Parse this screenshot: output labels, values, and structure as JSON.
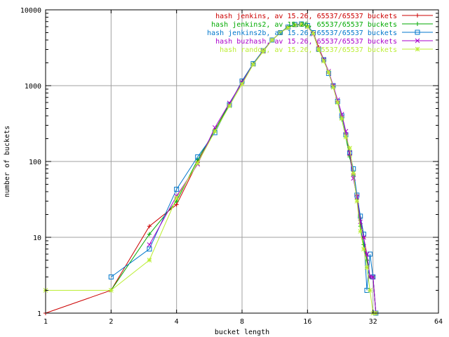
{
  "chart_data": {
    "type": "line",
    "title": "",
    "xlabel": "bucket length",
    "ylabel": "number of buckets",
    "xscale": "log2",
    "yscale": "log10",
    "xlim": [
      1,
      64
    ],
    "ylim": [
      1,
      10000
    ],
    "grid": true,
    "legend_position": "top-right",
    "xticks": [
      {
        "value": 1,
        "label": "1"
      },
      {
        "value": 2,
        "label": "2"
      },
      {
        "value": 4,
        "label": "4"
      },
      {
        "value": 8,
        "label": "8"
      },
      {
        "value": 16,
        "label": "16"
      },
      {
        "value": 32,
        "label": "32"
      },
      {
        "value": 64,
        "label": "64"
      }
    ],
    "yticks": [
      {
        "value": 1,
        "label": "1"
      },
      {
        "value": 10,
        "label": "10"
      },
      {
        "value": 100,
        "label": "100"
      },
      {
        "value": 1000,
        "label": "1000"
      },
      {
        "value": 10000,
        "label": "10000"
      }
    ],
    "series": [
      {
        "name": "hash jenkins, av 15.26, 65537/65537 buckets",
        "color": "#cc0000",
        "marker": "plus",
        "points": [
          [
            1,
            1
          ],
          [
            2,
            2
          ],
          [
            3,
            14
          ],
          [
            4,
            27
          ],
          [
            5,
            98
          ],
          [
            6,
            256
          ],
          [
            7,
            560
          ],
          [
            8,
            1150
          ],
          [
            9,
            1950
          ],
          [
            10,
            2900
          ],
          [
            11,
            4000
          ],
          [
            12,
            5000
          ],
          [
            13,
            5900
          ],
          [
            14,
            6300
          ],
          [
            15,
            6400
          ],
          [
            16,
            6200
          ],
          [
            17,
            5000
          ],
          [
            18,
            3200
          ],
          [
            19,
            2200
          ],
          [
            20,
            1500
          ],
          [
            21,
            1000
          ],
          [
            22,
            610
          ],
          [
            23,
            390
          ],
          [
            24,
            230
          ],
          [
            25,
            120
          ],
          [
            26,
            68
          ],
          [
            27,
            36
          ],
          [
            28,
            18
          ],
          [
            29,
            10
          ],
          [
            30,
            5
          ],
          [
            31,
            3
          ],
          [
            32,
            3
          ],
          [
            33,
            1
          ]
        ]
      },
      {
        "name": "hash jenkins2, av 15.26, 65537/65537 buckets",
        "color": "#00aa00",
        "marker": "plus",
        "points": [
          [
            2,
            2
          ],
          [
            3,
            11
          ],
          [
            4,
            30
          ],
          [
            5,
            105
          ],
          [
            6,
            260
          ],
          [
            7,
            575
          ],
          [
            8,
            1100
          ],
          [
            9,
            1950
          ],
          [
            10,
            2900
          ],
          [
            11,
            4000
          ],
          [
            12,
            5000
          ],
          [
            13,
            6000
          ],
          [
            14,
            6400
          ],
          [
            15,
            6500
          ],
          [
            16,
            6100
          ],
          [
            17,
            4900
          ],
          [
            18,
            3000
          ],
          [
            19,
            2200
          ],
          [
            20,
            1500
          ],
          [
            21,
            980
          ],
          [
            22,
            600
          ],
          [
            23,
            360
          ],
          [
            24,
            210
          ],
          [
            25,
            115
          ],
          [
            26,
            65
          ],
          [
            27,
            32
          ],
          [
            28,
            14
          ],
          [
            29,
            8
          ],
          [
            30,
            5
          ],
          [
            31,
            3
          ],
          [
            32,
            3
          ],
          [
            33,
            1
          ]
        ]
      },
      {
        "name": "hash jenkins2b, av 15.26, 65537/65537 buckets",
        "color": "#0077cc",
        "marker": "square",
        "points": [
          [
            2,
            3
          ],
          [
            3,
            7
          ],
          [
            4,
            43
          ],
          [
            5,
            115
          ],
          [
            6,
            240
          ],
          [
            7,
            560
          ],
          [
            8,
            1150
          ],
          [
            9,
            1950
          ],
          [
            10,
            2900
          ],
          [
            11,
            4000
          ],
          [
            12,
            5000
          ],
          [
            13,
            5900
          ],
          [
            14,
            6400
          ],
          [
            15,
            6500
          ],
          [
            16,
            6200
          ],
          [
            17,
            5000
          ],
          [
            18,
            3000
          ],
          [
            19,
            2200
          ],
          [
            20,
            1450
          ],
          [
            21,
            1000
          ],
          [
            22,
            620
          ],
          [
            23,
            400
          ],
          [
            24,
            225
          ],
          [
            25,
            130
          ],
          [
            26,
            80
          ],
          [
            27,
            36
          ],
          [
            28,
            19
          ],
          [
            29,
            11
          ],
          [
            30,
            2
          ],
          [
            31,
            6
          ],
          [
            32,
            3
          ],
          [
            33,
            1
          ]
        ]
      },
      {
        "name": "hash buzhash, av 15.26, 65537/65537 buckets",
        "color": "#aa00cc",
        "marker": "cross",
        "points": [
          [
            3,
            8
          ],
          [
            4,
            35
          ],
          [
            5,
            92
          ],
          [
            6,
            280
          ],
          [
            7,
            590
          ],
          [
            8,
            1100
          ],
          [
            9,
            1900
          ],
          [
            10,
            2850
          ],
          [
            11,
            4000
          ],
          [
            12,
            5000
          ],
          [
            13,
            5800
          ],
          [
            14,
            6300
          ],
          [
            15,
            6400
          ],
          [
            16,
            6000
          ],
          [
            17,
            4800
          ],
          [
            18,
            3100
          ],
          [
            19,
            2200
          ],
          [
            20,
            1550
          ],
          [
            21,
            1000
          ],
          [
            22,
            650
          ],
          [
            23,
            420
          ],
          [
            24,
            250
          ],
          [
            25,
            130
          ],
          [
            26,
            60
          ],
          [
            27,
            34
          ],
          [
            28,
            16
          ],
          [
            29,
            10
          ],
          [
            30,
            6
          ],
          [
            31,
            3
          ],
          [
            32,
            3
          ],
          [
            33,
            1
          ]
        ]
      },
      {
        "name": "hash random, av 15.26, 65537/65537 buckets",
        "color": "#bbee33",
        "marker": "star",
        "points": [
          [
            1,
            2
          ],
          [
            2,
            2
          ],
          [
            3,
            5
          ],
          [
            4,
            33
          ],
          [
            5,
            95
          ],
          [
            6,
            250
          ],
          [
            7,
            540
          ],
          [
            8,
            1050
          ],
          [
            9,
            1900
          ],
          [
            10,
            2800
          ],
          [
            11,
            4000
          ],
          [
            12,
            5000
          ],
          [
            13,
            5800
          ],
          [
            14,
            6300
          ],
          [
            15,
            6400
          ],
          [
            16,
            6000
          ],
          [
            17,
            4900
          ],
          [
            18,
            3000
          ],
          [
            19,
            2100
          ],
          [
            20,
            1500
          ],
          [
            21,
            950
          ],
          [
            22,
            600
          ],
          [
            23,
            370
          ],
          [
            24,
            210
          ],
          [
            25,
            150
          ],
          [
            26,
            70
          ],
          [
            27,
            30
          ],
          [
            28,
            12
          ],
          [
            29,
            7
          ],
          [
            30,
            4
          ],
          [
            31,
            2
          ],
          [
            32,
            1
          ],
          [
            33,
            1
          ]
        ]
      }
    ]
  }
}
